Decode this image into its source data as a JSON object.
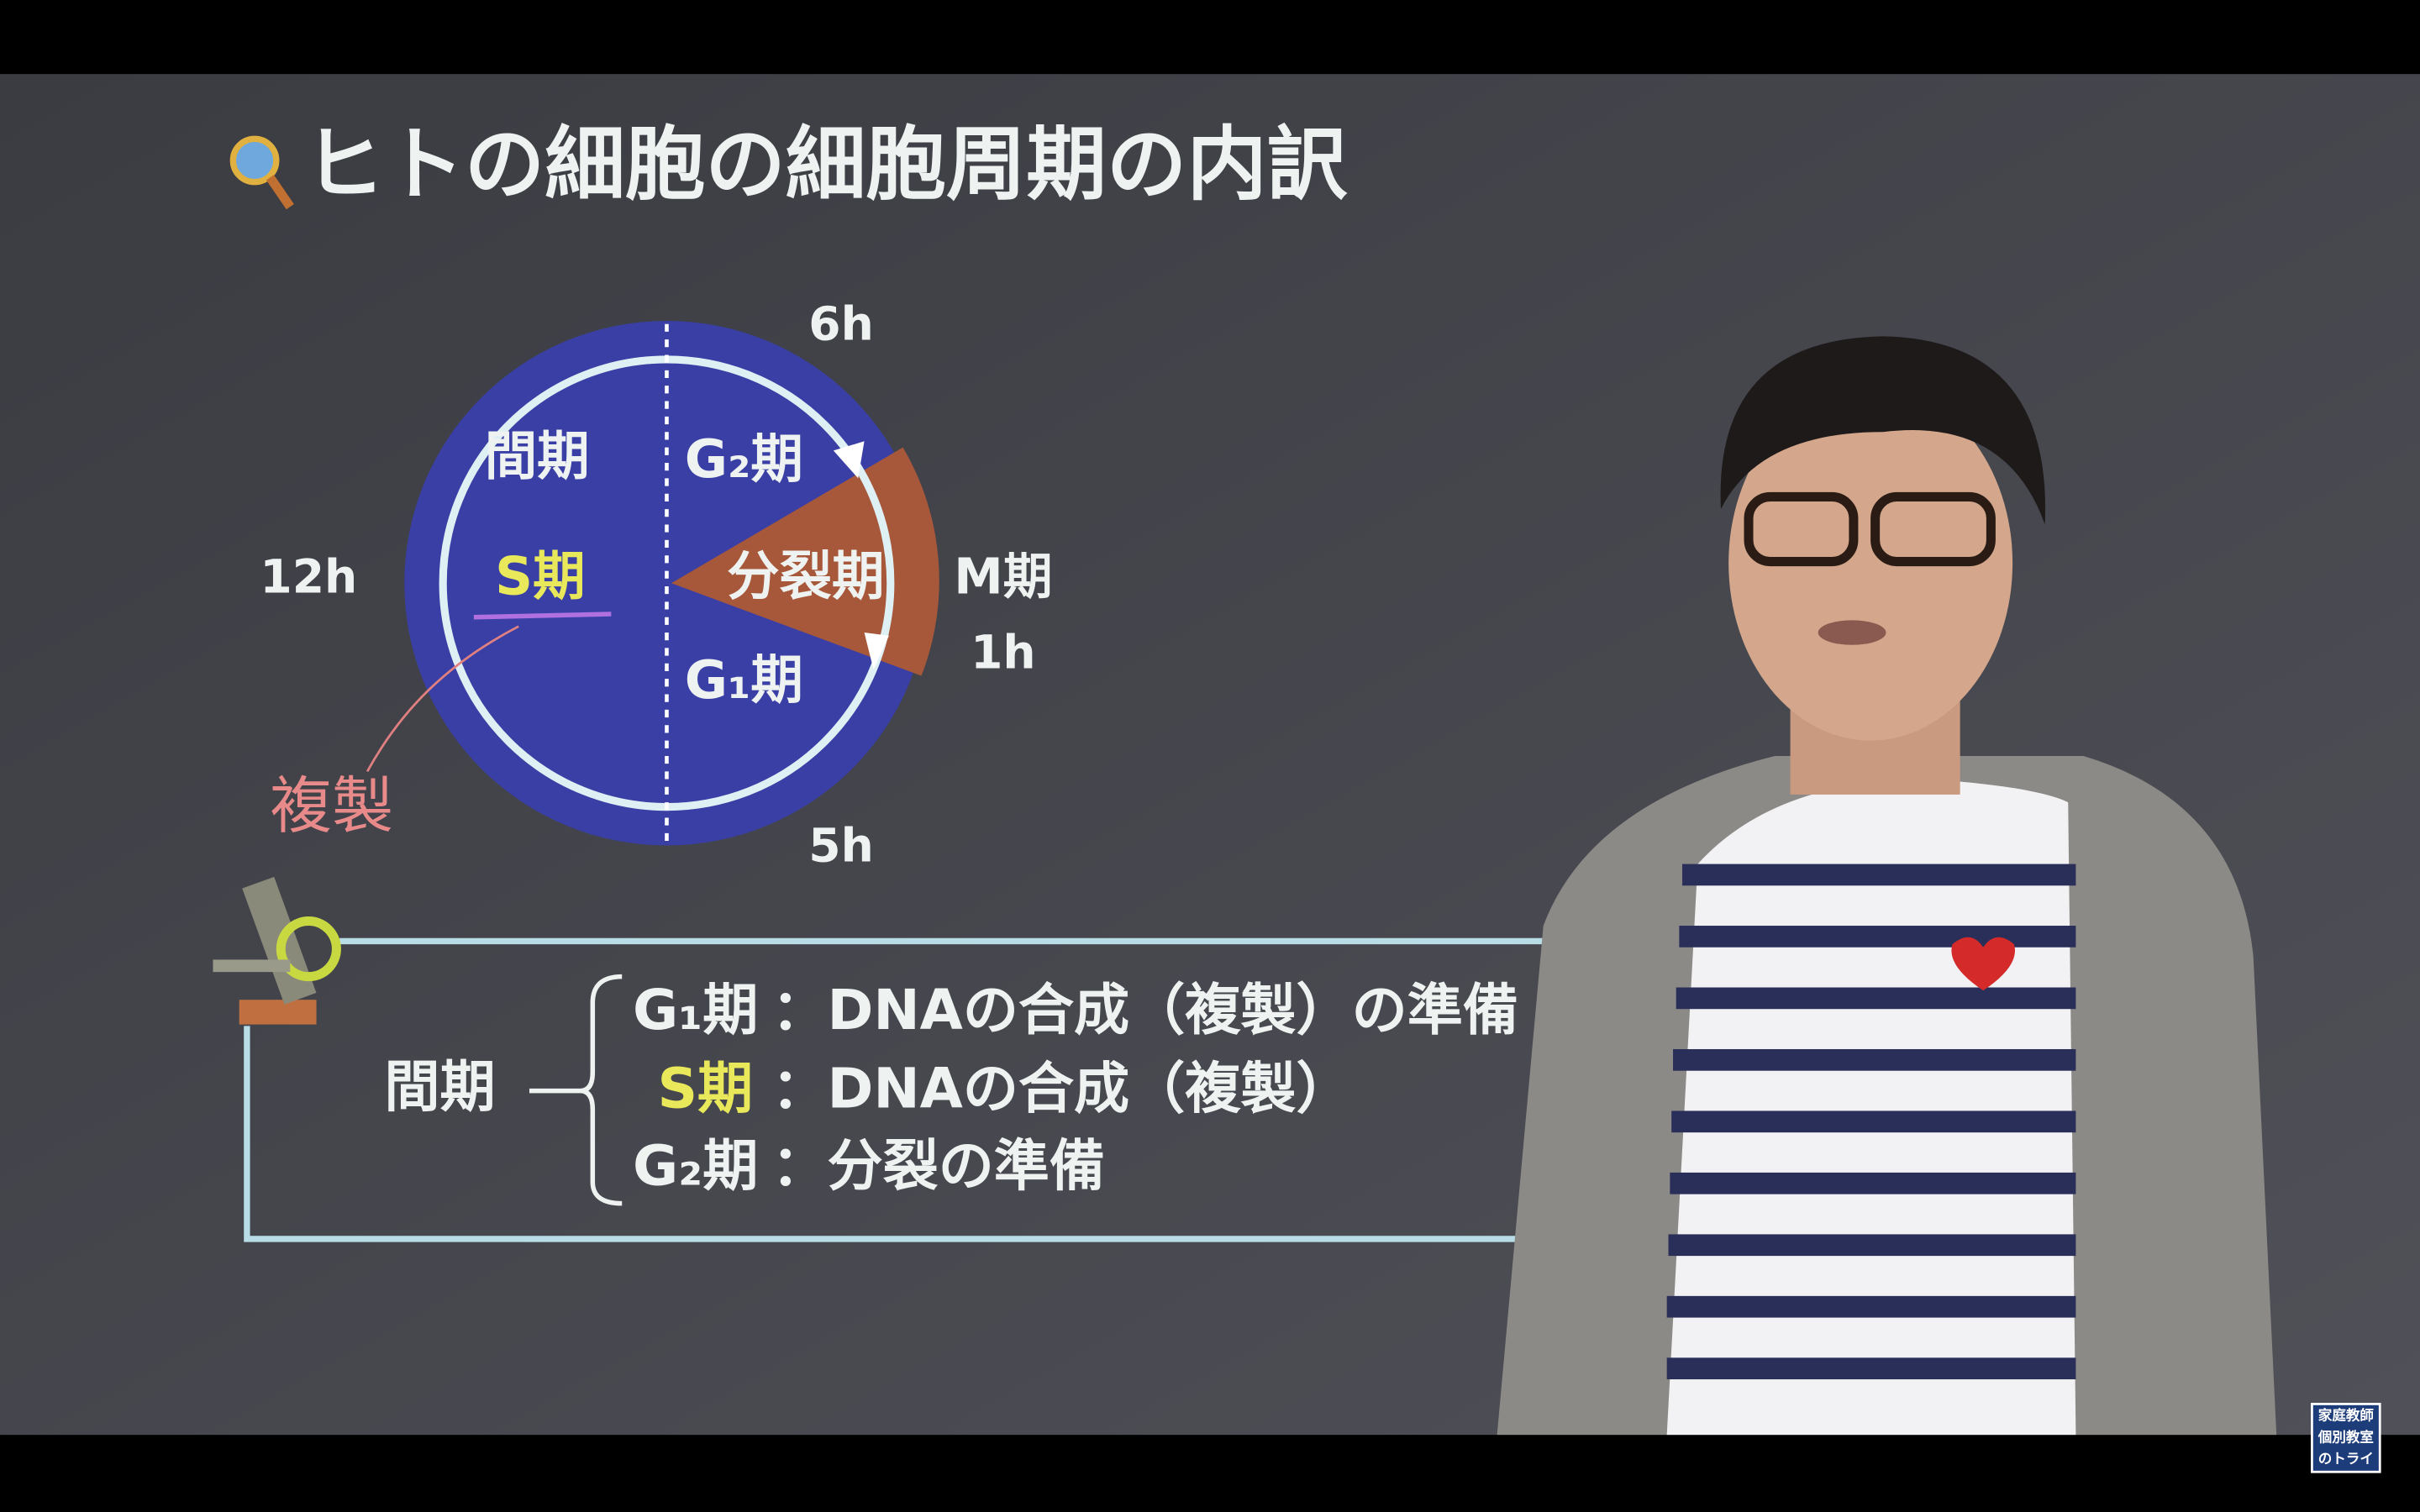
{
  "slide": {
    "title": "ヒトの細胞の細胞周期の内訳",
    "diagram": {
      "top_duration": "6h",
      "left_duration": "12h",
      "right_duration": "1h",
      "bottom_duration": "5h",
      "interphase": "間期",
      "g2": "G₂期",
      "s": "S期",
      "division": "分裂期",
      "m": "M期",
      "g1": "G₁期",
      "note": "複製"
    },
    "summary": {
      "group": "間期",
      "rows": [
        {
          "phase": "G₁期",
          "desc": "：DNAの合成（複製）の準備"
        },
        {
          "phase": "S期",
          "desc": "：DNAの合成（複製）"
        },
        {
          "phase": "G₂期",
          "desc": "：分裂の準備"
        }
      ]
    },
    "logo": [
      "家庭教師",
      "個別教室",
      "のトライ"
    ]
  }
}
